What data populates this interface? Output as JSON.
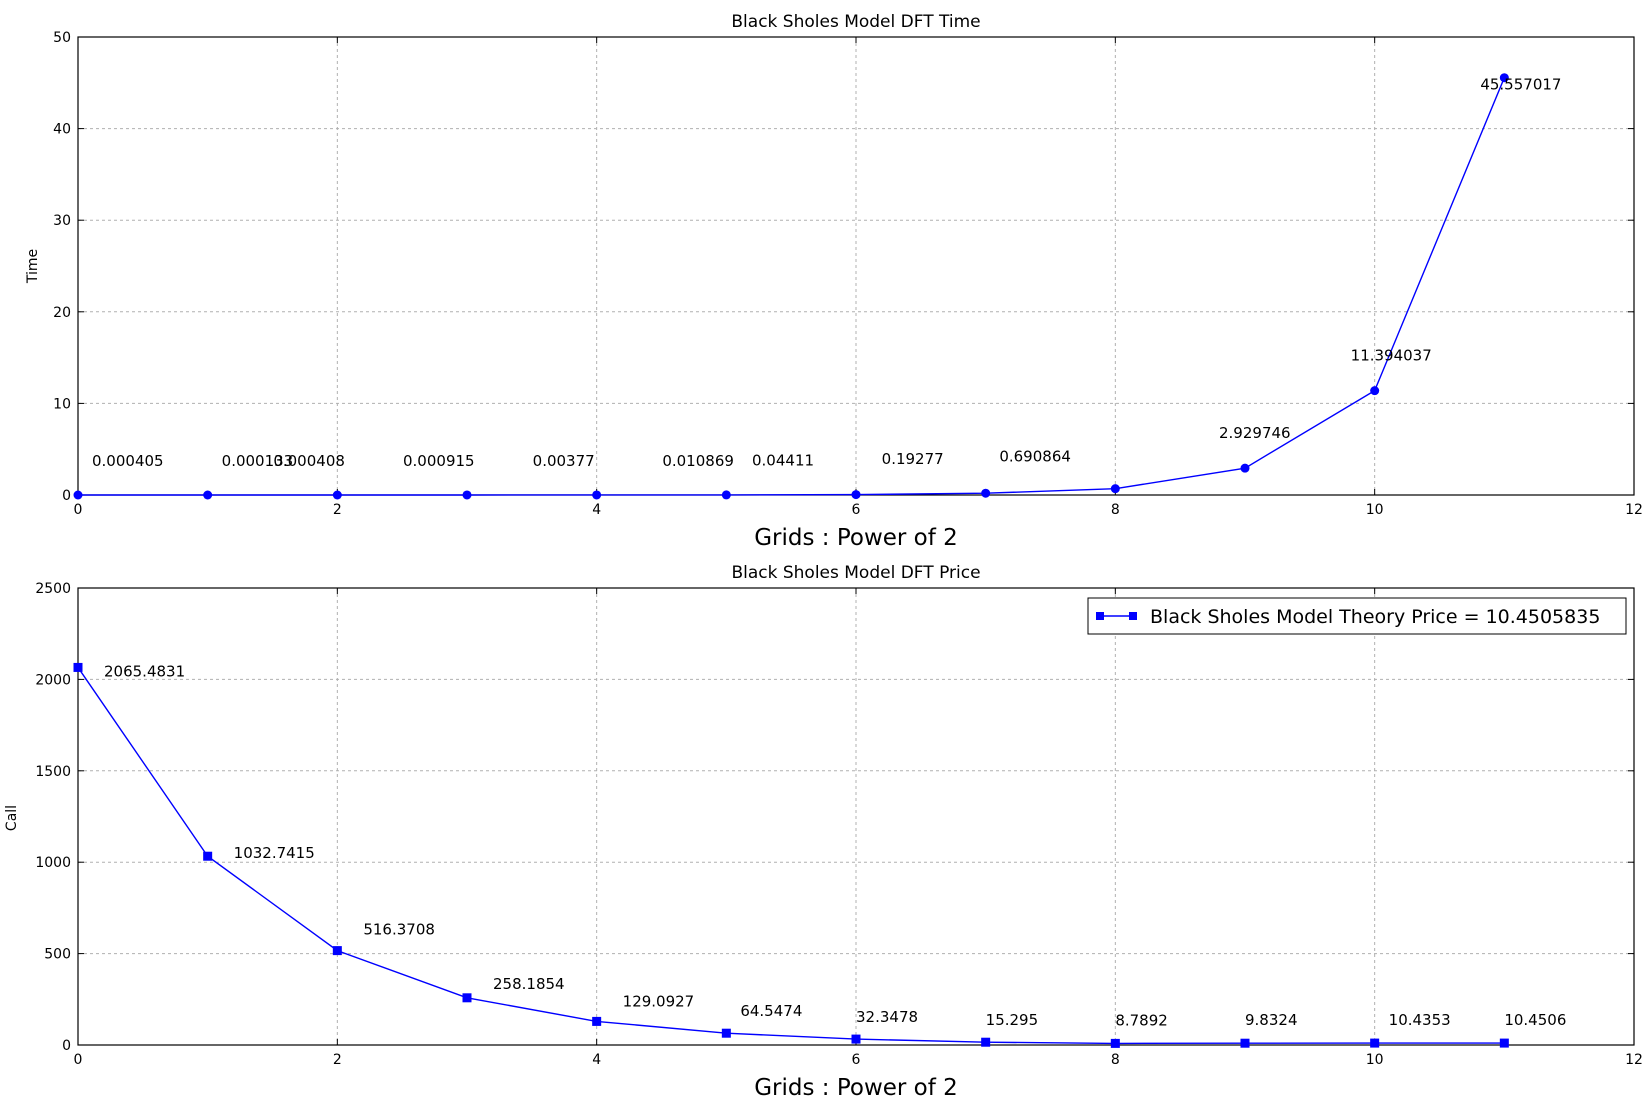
{
  "chart_data": [
    {
      "type": "line",
      "title": "Black Sholes Model DFT Time",
      "xlabel": "Grids : Power of 2",
      "ylabel": "Time",
      "xlim": [
        0,
        12
      ],
      "ylim": [
        0,
        50
      ],
      "xticks": [
        0,
        2,
        4,
        6,
        8,
        10,
        12
      ],
      "yticks": [
        0,
        10,
        20,
        30,
        40,
        50
      ],
      "grid": true,
      "marker": "circle",
      "color": "#0000ff",
      "x": [
        0,
        1,
        2,
        3,
        4,
        5,
        6,
        7,
        8,
        9,
        10,
        11
      ],
      "values": [
        0.000405,
        0.000133,
        0.000408,
        0.000915,
        0.00377,
        0.010869,
        0.04411,
        0.19277,
        0.690864,
        2.929746,
        11.394037,
        45.557017
      ],
      "data_labels": [
        "0.000405",
        "0.000133",
        "0.000408",
        "0.000915",
        "0.00377",
        "0.010869",
        "0.04411",
        "0.19277",
        "0.690864",
        "2.929746",
        "11.394037",
        "45.557017"
      ]
    },
    {
      "type": "line",
      "title": "Black Sholes Model DFT Price",
      "xlabel": "Grids : Power of 2",
      "ylabel": "Call",
      "xlim": [
        0,
        12
      ],
      "ylim": [
        0,
        2500
      ],
      "xticks": [
        0,
        2,
        4,
        6,
        8,
        10,
        12
      ],
      "yticks": [
        0,
        500,
        1000,
        1500,
        2000,
        2500
      ],
      "grid": true,
      "marker": "square",
      "color": "#0000ff",
      "legend": {
        "label": "Black Sholes Model Theory Price = 10.4505835",
        "position": "upper right"
      },
      "x": [
        0,
        1,
        2,
        3,
        4,
        5,
        6,
        7,
        8,
        9,
        10,
        11
      ],
      "values": [
        2065.4831,
        1032.7415,
        516.3708,
        258.1854,
        129.0927,
        64.5474,
        32.3478,
        15.295,
        8.7892,
        9.8324,
        10.4353,
        10.4506
      ],
      "data_labels": [
        "2065.4831",
        "1032.7415",
        "516.3708",
        "258.1854",
        "129.0927",
        "64.5474",
        "32.3478",
        "15.295",
        "8.7892",
        "9.8324",
        "10.4353",
        "10.4506"
      ]
    }
  ]
}
